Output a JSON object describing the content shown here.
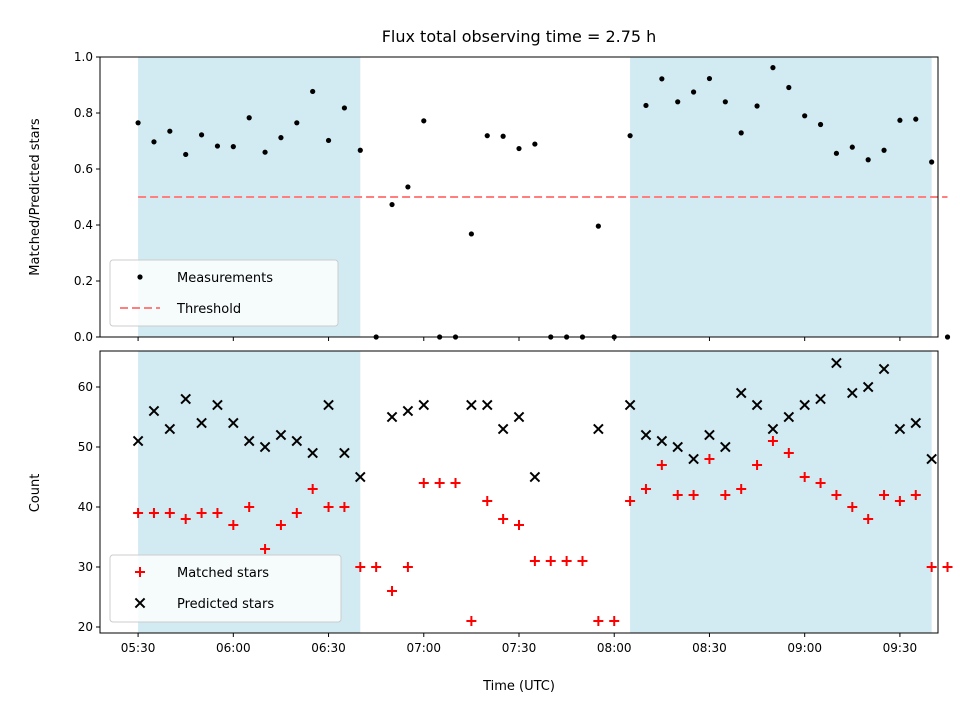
{
  "chart_data": {
    "title": "Flux total observing time = 2.75 h",
    "type": "scatter",
    "x_unit": "minutes since 00:00 UTC",
    "xlabel": "Time (UTC)",
    "xlim": [
      318,
      582
    ],
    "x_ticks": [
      {
        "value": 330,
        "label": "05:30"
      },
      {
        "value": 360,
        "label": "06:00"
      },
      {
        "value": 390,
        "label": "06:30"
      },
      {
        "value": 420,
        "label": "07:00"
      },
      {
        "value": 450,
        "label": "07:30"
      },
      {
        "value": 480,
        "label": "08:00"
      },
      {
        "value": 510,
        "label": "08:30"
      },
      {
        "value": 540,
        "label": "09:00"
      },
      {
        "value": 570,
        "label": "09:30"
      }
    ],
    "shaded_intervals": [
      [
        330,
        400
      ],
      [
        485,
        580
      ]
    ],
    "shade_color": "#add8e6",
    "panels": [
      {
        "ylabel": "Matched/Predicted stars",
        "ylim": [
          0,
          1.0
        ],
        "yticks": [
          "0.0",
          "0.2",
          "0.4",
          "0.6",
          "0.8",
          "1.0"
        ],
        "series": [
          {
            "name": "Measurements",
            "marker": "dot",
            "color": "#000000",
            "points": [
              [
                330,
                0.765
              ],
              [
                335,
                0.697
              ],
              [
                340,
                0.735
              ],
              [
                345,
                0.652
              ],
              [
                350,
                0.722
              ],
              [
                355,
                0.682
              ],
              [
                360,
                0.68
              ],
              [
                365,
                0.783
              ],
              [
                370,
                0.66
              ],
              [
                375,
                0.712
              ],
              [
                380,
                0.765
              ],
              [
                385,
                0.877
              ],
              [
                390,
                0.702
              ],
              [
                395,
                0.818
              ],
              [
                400,
                0.667
              ],
              [
                405,
                0.0
              ],
              [
                410,
                0.473
              ],
              [
                415,
                0.536
              ],
              [
                420,
                0.772
              ],
              [
                425,
                0.0
              ],
              [
                430,
                0.0
              ],
              [
                435,
                0.368
              ],
              [
                440,
                0.719
              ],
              [
                445,
                0.717
              ],
              [
                450,
                0.673
              ],
              [
                455,
                0.689
              ],
              [
                460,
                0.0
              ],
              [
                465,
                0.0
              ],
              [
                470,
                0.0
              ],
              [
                475,
                0.396
              ],
              [
                480,
                0.0
              ],
              [
                485,
                0.719
              ],
              [
                490,
                0.827
              ],
              [
                495,
                0.922
              ],
              [
                500,
                0.84
              ],
              [
                505,
                0.875
              ],
              [
                510,
                0.923
              ],
              [
                515,
                0.84
              ],
              [
                520,
                0.729
              ],
              [
                525,
                0.825
              ],
              [
                530,
                0.962
              ],
              [
                535,
                0.891
              ],
              [
                540,
                0.79
              ],
              [
                545,
                0.759
              ],
              [
                550,
                0.656
              ],
              [
                555,
                0.678
              ],
              [
                560,
                0.633
              ],
              [
                565,
                0.667
              ],
              [
                570,
                0.774
              ],
              [
                575,
                0.778
              ],
              [
                580,
                0.625
              ],
              [
                585,
                0.0
              ]
            ]
          },
          {
            "name": "Threshold",
            "style": "dashed",
            "color": "#ff7f7f",
            "x": [
              330,
              585
            ],
            "value": 0.5
          }
        ],
        "legend": "lower-left"
      },
      {
        "ylabel": "Count",
        "ylim": [
          19,
          66
        ],
        "yticks": [
          "20",
          "30",
          "40",
          "50",
          "60"
        ],
        "series": [
          {
            "name": "Matched stars",
            "marker": "plus",
            "color": "#ff0000",
            "points": [
              [
                330,
                39
              ],
              [
                335,
                39
              ],
              [
                340,
                39
              ],
              [
                345,
                38
              ],
              [
                350,
                39
              ],
              [
                355,
                39
              ],
              [
                360,
                37
              ],
              [
                365,
                40
              ],
              [
                370,
                33
              ],
              [
                375,
                37
              ],
              [
                380,
                39
              ],
              [
                385,
                43
              ],
              [
                390,
                40
              ],
              [
                395,
                40
              ],
              [
                400,
                30
              ],
              [
                405,
                30
              ],
              [
                410,
                26
              ],
              [
                415,
                30
              ],
              [
                420,
                44
              ],
              [
                425,
                44
              ],
              [
                430,
                44
              ],
              [
                435,
                21
              ],
              [
                440,
                41
              ],
              [
                445,
                38
              ],
              [
                450,
                37
              ],
              [
                455,
                31
              ],
              [
                460,
                31
              ],
              [
                465,
                31
              ],
              [
                470,
                31
              ],
              [
                475,
                21
              ],
              [
                480,
                21
              ],
              [
                485,
                41
              ],
              [
                490,
                43
              ],
              [
                495,
                47
              ],
              [
                500,
                42
              ],
              [
                505,
                42
              ],
              [
                510,
                48
              ],
              [
                515,
                42
              ],
              [
                520,
                43
              ],
              [
                525,
                47
              ],
              [
                530,
                51
              ],
              [
                535,
                49
              ],
              [
                540,
                45
              ],
              [
                545,
                44
              ],
              [
                550,
                42
              ],
              [
                555,
                40
              ],
              [
                560,
                38
              ],
              [
                565,
                42
              ],
              [
                570,
                41
              ],
              [
                575,
                42
              ],
              [
                580,
                30
              ],
              [
                585,
                30
              ]
            ]
          },
          {
            "name": "Predicted stars",
            "marker": "x",
            "color": "#000000",
            "points": [
              [
                330,
                51
              ],
              [
                335,
                56
              ],
              [
                340,
                53
              ],
              [
                345,
                58
              ],
              [
                350,
                54
              ],
              [
                355,
                57
              ],
              [
                360,
                54
              ],
              [
                365,
                51
              ],
              [
                370,
                50
              ],
              [
                375,
                52
              ],
              [
                380,
                51
              ],
              [
                385,
                49
              ],
              [
                390,
                57
              ],
              [
                395,
                49
              ],
              [
                400,
                45
              ],
              [
                410,
                55
              ],
              [
                415,
                56
              ],
              [
                420,
                57
              ],
              [
                435,
                57
              ],
              [
                440,
                57
              ],
              [
                445,
                53
              ],
              [
                450,
                55
              ],
              [
                455,
                45
              ],
              [
                475,
                53
              ],
              [
                485,
                57
              ],
              [
                490,
                52
              ],
              [
                495,
                51
              ],
              [
                500,
                50
              ],
              [
                505,
                48
              ],
              [
                510,
                52
              ],
              [
                515,
                50
              ],
              [
                520,
                59
              ],
              [
                525,
                57
              ],
              [
                530,
                53
              ],
              [
                535,
                55
              ],
              [
                540,
                57
              ],
              [
                545,
                58
              ],
              [
                550,
                64
              ],
              [
                555,
                59
              ],
              [
                560,
                60
              ],
              [
                565,
                63
              ],
              [
                570,
                53
              ],
              [
                575,
                54
              ],
              [
                580,
                48
              ]
            ]
          }
        ],
        "legend": "lower-left"
      }
    ]
  }
}
